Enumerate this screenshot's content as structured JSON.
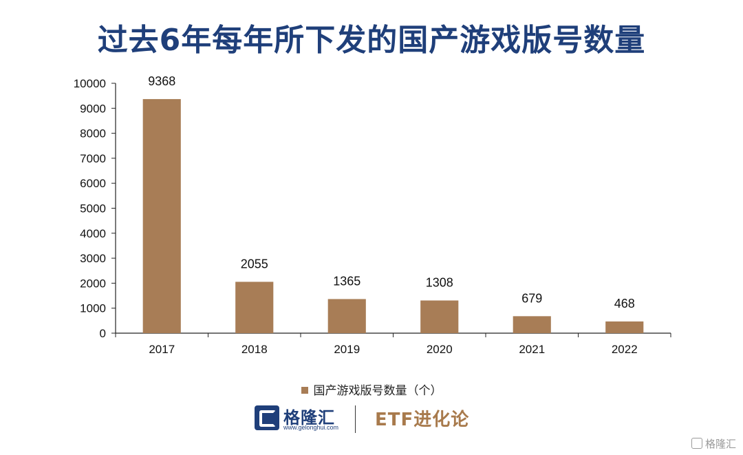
{
  "colors": {
    "title": "#1f3f7a",
    "bar": "#a87d56",
    "brand_blue": "#1f3f7a",
    "brand_gold": "#a87a4c"
  },
  "chart_data": {
    "type": "bar",
    "title": "过去6年每年所下发的国产游戏版号数量",
    "categories": [
      "2017",
      "2018",
      "2019",
      "2020",
      "2021",
      "2022"
    ],
    "series": [
      {
        "name": "国产游戏版号数量（个）",
        "values": [
          9368,
          2055,
          1365,
          1308,
          679,
          468
        ]
      }
    ],
    "ylim": [
      0,
      10000
    ],
    "yticks": [
      0,
      1000,
      2000,
      3000,
      4000,
      5000,
      6000,
      7000,
      8000,
      9000,
      10000
    ],
    "xlabel": "",
    "ylabel": "",
    "grid": false,
    "legend": "bottom-center",
    "data_labels": true
  },
  "branding": {
    "logo_icon": "gelonghui-logo-icon",
    "name": "格隆汇",
    "url": "www.gelonghui.com",
    "partner": "ETF进化论",
    "watermark": "格隆汇"
  }
}
